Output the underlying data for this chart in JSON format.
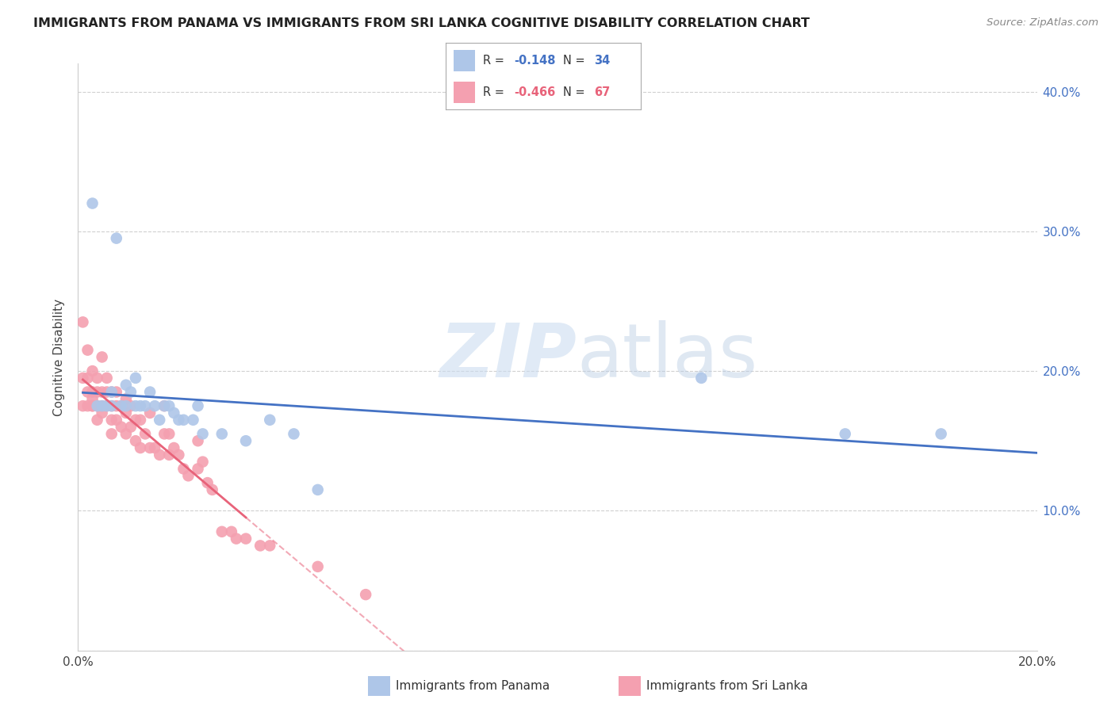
{
  "title": "IMMIGRANTS FROM PANAMA VS IMMIGRANTS FROM SRI LANKA COGNITIVE DISABILITY CORRELATION CHART",
  "source": "Source: ZipAtlas.com",
  "ylabel": "Cognitive Disability",
  "xlim": [
    0.0,
    0.2
  ],
  "ylim": [
    0.0,
    0.42
  ],
  "xtick_positions": [
    0.0,
    0.04,
    0.08,
    0.12,
    0.16,
    0.2
  ],
  "xtick_labels": [
    "0.0%",
    "",
    "",
    "",
    "",
    "20.0%"
  ],
  "ytick_positions": [
    0.0,
    0.1,
    0.2,
    0.3,
    0.4
  ],
  "ytick_labels_right": [
    "",
    "10.0%",
    "20.0%",
    "30.0%",
    "40.0%"
  ],
  "background_color": "#ffffff",
  "grid_color": "#d0d0d0",
  "panama_color": "#aec6e8",
  "srilanka_color": "#f4a0b0",
  "panama_line_color": "#4472c4",
  "srilanka_line_color": "#e8637a",
  "legend_r_panama": "-0.148",
  "legend_n_panama": "34",
  "legend_r_srilanka": "-0.466",
  "legend_n_srilanka": "67",
  "panama_x": [
    0.003,
    0.004,
    0.005,
    0.006,
    0.007,
    0.007,
    0.008,
    0.009,
    0.01,
    0.01,
    0.011,
    0.012,
    0.012,
    0.013,
    0.014,
    0.015,
    0.016,
    0.017,
    0.018,
    0.019,
    0.02,
    0.021,
    0.022,
    0.024,
    0.025,
    0.026,
    0.03,
    0.035,
    0.04,
    0.045,
    0.05,
    0.13,
    0.16,
    0.18
  ],
  "panama_y": [
    0.32,
    0.175,
    0.175,
    0.175,
    0.175,
    0.185,
    0.295,
    0.175,
    0.175,
    0.19,
    0.185,
    0.175,
    0.195,
    0.175,
    0.175,
    0.185,
    0.175,
    0.165,
    0.175,
    0.175,
    0.17,
    0.165,
    0.165,
    0.165,
    0.175,
    0.155,
    0.155,
    0.15,
    0.165,
    0.155,
    0.115,
    0.195,
    0.155,
    0.155
  ],
  "srilanka_x": [
    0.001,
    0.001,
    0.001,
    0.002,
    0.002,
    0.002,
    0.002,
    0.003,
    0.003,
    0.003,
    0.003,
    0.003,
    0.004,
    0.004,
    0.004,
    0.004,
    0.005,
    0.005,
    0.005,
    0.005,
    0.006,
    0.006,
    0.006,
    0.007,
    0.007,
    0.007,
    0.007,
    0.008,
    0.008,
    0.008,
    0.009,
    0.009,
    0.01,
    0.01,
    0.01,
    0.011,
    0.011,
    0.012,
    0.012,
    0.013,
    0.013,
    0.014,
    0.015,
    0.015,
    0.016,
    0.017,
    0.018,
    0.018,
    0.019,
    0.019,
    0.02,
    0.021,
    0.022,
    0.023,
    0.025,
    0.025,
    0.026,
    0.027,
    0.028,
    0.03,
    0.032,
    0.033,
    0.035,
    0.038,
    0.04,
    0.05,
    0.06
  ],
  "srilanka_y": [
    0.235,
    0.175,
    0.195,
    0.215,
    0.195,
    0.185,
    0.175,
    0.2,
    0.185,
    0.18,
    0.175,
    0.175,
    0.195,
    0.185,
    0.175,
    0.165,
    0.21,
    0.185,
    0.175,
    0.17,
    0.195,
    0.185,
    0.175,
    0.185,
    0.175,
    0.165,
    0.155,
    0.185,
    0.175,
    0.165,
    0.175,
    0.16,
    0.18,
    0.17,
    0.155,
    0.175,
    0.16,
    0.165,
    0.15,
    0.165,
    0.145,
    0.155,
    0.17,
    0.145,
    0.145,
    0.14,
    0.175,
    0.155,
    0.155,
    0.14,
    0.145,
    0.14,
    0.13,
    0.125,
    0.15,
    0.13,
    0.135,
    0.12,
    0.115,
    0.085,
    0.085,
    0.08,
    0.08,
    0.075,
    0.075,
    0.06,
    0.04
  ]
}
